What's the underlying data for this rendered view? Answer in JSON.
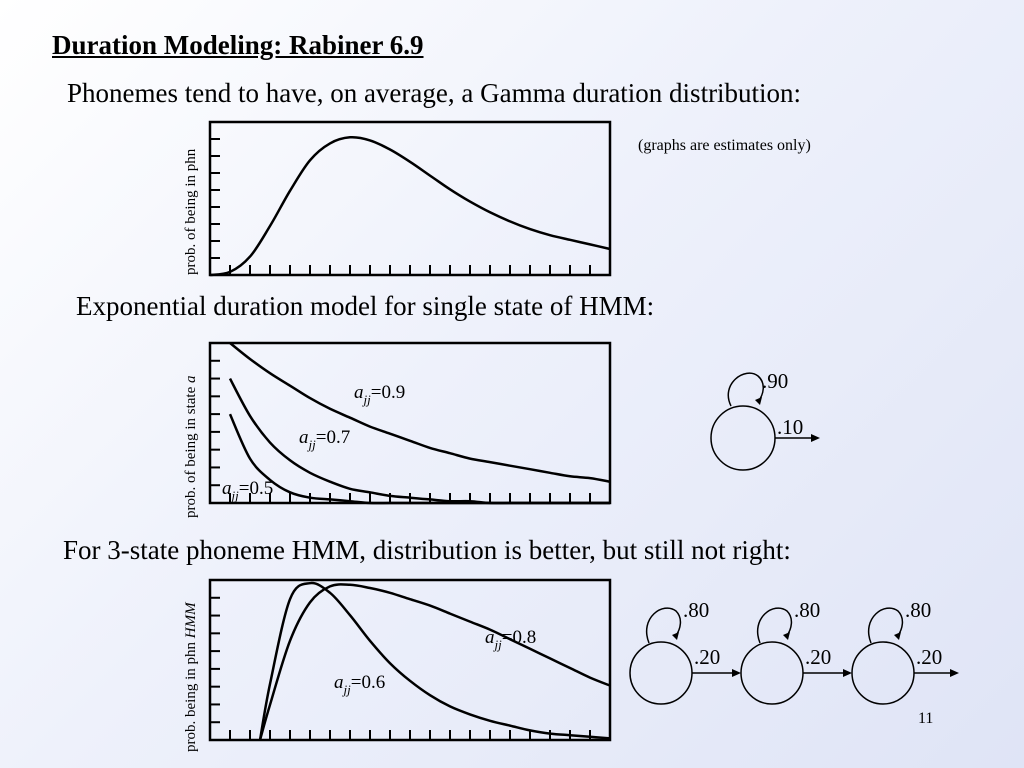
{
  "slide": {
    "title": "Duration Modeling: Rabiner 6.9",
    "line1": "Phonemes tend to have, on average, a Gamma duration distribution:",
    "note": "(graphs are estimates only)",
    "line2": "Exponential duration model for single state of HMM:",
    "line3": "For 3-state phoneme HMM, distribution is better, but still not right:",
    "page_number": "11"
  },
  "graph1": {
    "ylabel": "prob. of being in phn"
  },
  "graph2": {
    "ylabel_prefix": "prob. of being in state ",
    "ylabel_var": "a",
    "curve_labels": [
      {
        "var": "a",
        "sub": "jj",
        "value": "=0.9"
      },
      {
        "var": "a",
        "sub": "jj",
        "value": "=0.7"
      },
      {
        "var": "a",
        "sub": "jj",
        "value": "=0.5"
      }
    ]
  },
  "graph3": {
    "ylabel_prefix": "prob. being in phn ",
    "ylabel_var": "HMM",
    "curve_labels": [
      {
        "var": "a",
        "sub": "jj",
        "value": "=0.8"
      },
      {
        "var": "a",
        "sub": "jj",
        "value": "=0.6"
      }
    ]
  },
  "hmm1": {
    "self_loop": ".90",
    "exit": ".10"
  },
  "hmm3": {
    "self_loops": [
      ".80",
      ".80",
      ".80"
    ],
    "exits": [
      ".20",
      ".20",
      ".20"
    ]
  },
  "chart_data": [
    {
      "type": "line",
      "title": "",
      "ylabel": "prob. of being in phn",
      "xlabel": "",
      "series": [
        {
          "x": [
            0,
            1,
            2,
            3,
            4,
            5,
            6,
            7,
            8,
            9,
            10,
            11,
            12,
            13,
            14,
            15,
            16,
            17,
            18,
            19,
            20
          ],
          "values": [
            0.0,
            0.02,
            0.12,
            0.32,
            0.55,
            0.75,
            0.86,
            0.9,
            0.88,
            0.82,
            0.74,
            0.65,
            0.56,
            0.48,
            0.41,
            0.35,
            0.3,
            0.26,
            0.23,
            0.2,
            0.17
          ]
        }
      ],
      "xlim": [
        0,
        20
      ],
      "ylim": [
        0,
        1
      ]
    },
    {
      "type": "line",
      "title": "",
      "ylabel": "prob. of being in state a",
      "xlabel": "",
      "series": [
        {
          "name": "a_jj=0.9",
          "x": [
            1,
            2,
            3,
            4,
            5,
            6,
            7,
            8,
            9,
            10,
            11,
            12,
            13,
            14,
            15,
            16,
            17,
            18,
            19,
            20
          ],
          "values": [
            0.9,
            0.81,
            0.73,
            0.66,
            0.59,
            0.53,
            0.48,
            0.43,
            0.39,
            0.35,
            0.31,
            0.28,
            0.25,
            0.23,
            0.21,
            0.19,
            0.17,
            0.15,
            0.14,
            0.12
          ]
        },
        {
          "name": "a_jj=0.7",
          "x": [
            1,
            2,
            3,
            4,
            5,
            6,
            7,
            8,
            9,
            10,
            11,
            12,
            13,
            14,
            15,
            16,
            17,
            18,
            19,
            20
          ],
          "values": [
            0.7,
            0.49,
            0.34,
            0.24,
            0.17,
            0.12,
            0.08,
            0.06,
            0.04,
            0.03,
            0.02,
            0.01,
            0.01,
            0.0,
            0.0,
            0.0,
            0.0,
            0.0,
            0.0,
            0.0
          ]
        },
        {
          "name": "a_jj=0.5",
          "x": [
            1,
            2,
            3,
            4,
            5,
            6,
            7,
            8,
            9,
            10,
            11,
            12,
            13,
            14,
            15,
            16,
            17,
            18,
            19,
            20
          ],
          "values": [
            0.5,
            0.25,
            0.13,
            0.06,
            0.03,
            0.02,
            0.01,
            0.0,
            0.0,
            0.0,
            0.0,
            0.0,
            0.0,
            0.0,
            0.0,
            0.0,
            0.0,
            0.0,
            0.0,
            0.0
          ]
        }
      ],
      "xlim": [
        0,
        20
      ],
      "ylim": [
        0,
        0.9
      ]
    },
    {
      "type": "line",
      "title": "",
      "ylabel": "prob. being in phn HMM",
      "xlabel": "",
      "series": [
        {
          "name": "a_jj=0.6",
          "x": [
            2.5,
            3,
            4,
            5,
            6,
            7,
            8,
            9,
            10,
            11,
            12,
            13,
            14,
            15,
            16,
            17,
            18,
            19,
            20
          ],
          "values": [
            0.0,
            0.35,
            0.88,
            0.98,
            0.92,
            0.78,
            0.62,
            0.48,
            0.37,
            0.28,
            0.21,
            0.16,
            0.12,
            0.09,
            0.06,
            0.04,
            0.03,
            0.02,
            0.01
          ]
        },
        {
          "name": "a_jj=0.8",
          "x": [
            2.5,
            3,
            4,
            5,
            6,
            7,
            8,
            9,
            10,
            11,
            12,
            13,
            14,
            15,
            16,
            17,
            18,
            19,
            20
          ],
          "values": [
            0.0,
            0.22,
            0.62,
            0.86,
            0.96,
            0.97,
            0.95,
            0.92,
            0.88,
            0.84,
            0.79,
            0.74,
            0.69,
            0.63,
            0.57,
            0.51,
            0.45,
            0.39,
            0.34
          ]
        }
      ],
      "xlim": [
        0,
        20
      ],
      "ylim": [
        0,
        1
      ]
    }
  ]
}
